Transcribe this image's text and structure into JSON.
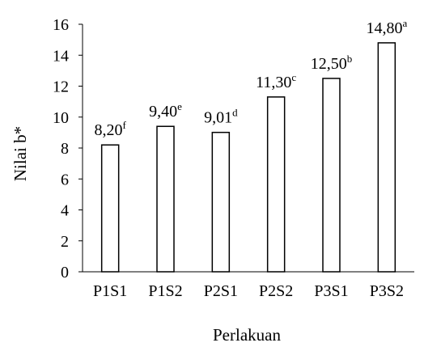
{
  "chart_data": {
    "type": "bar",
    "title": "",
    "xlabel": "Perlakuan",
    "ylabel": "Nilai b*",
    "ylim": [
      0,
      16
    ],
    "yticks": [
      0,
      2,
      4,
      6,
      8,
      10,
      12,
      14,
      16
    ],
    "categories": [
      "P1S1",
      "P1S2",
      "P2S1",
      "P2S2",
      "P3S1",
      "P3S2"
    ],
    "values": [
      8.2,
      9.4,
      9.01,
      11.3,
      12.5,
      14.8
    ],
    "data_labels": [
      "8,20",
      "9,40",
      "9,01",
      "11,30",
      "12,50",
      "14,80"
    ],
    "significance_letters": [
      "f",
      "e",
      "d",
      "c",
      "b",
      "a"
    ],
    "grid": false,
    "legend": "none",
    "bar_fill": "#ffffff",
    "bar_stroke": "#000000"
  }
}
